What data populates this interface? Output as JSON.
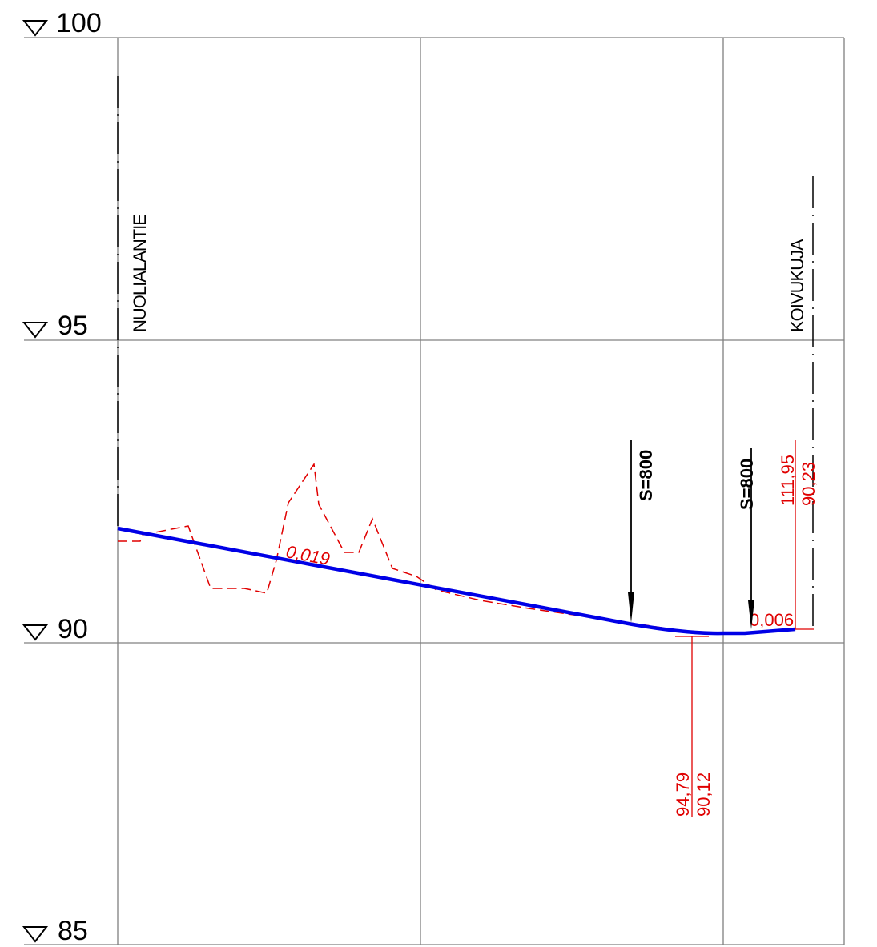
{
  "levels": [
    "100",
    "95",
    "90",
    "85"
  ],
  "streets": {
    "left": "NUOLIALANTIE",
    "right": "KOIVUKUJA"
  },
  "vertical_curves": {
    "first": "S=800",
    "second": "S=800"
  },
  "slopes": {
    "first": "0,019",
    "second": "0,006"
  },
  "low_point": {
    "station": "94,79",
    "elevation": "90,12"
  },
  "end_point": {
    "station": "111,95",
    "elevation": "90,23"
  },
  "colors": {
    "grid": "#808080",
    "design_line": "#0000e6",
    "terrain": "#e00000",
    "annotation": "#000000"
  }
}
